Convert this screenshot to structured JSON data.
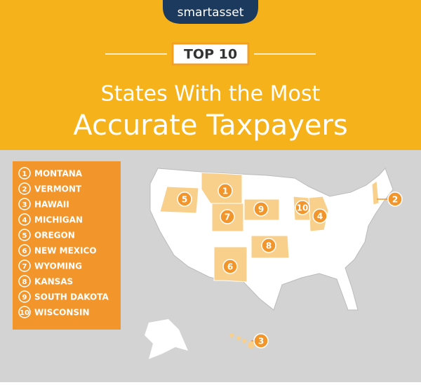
{
  "logo": "smartasset",
  "badge": "TOP 10",
  "title": {
    "line1": "States With the Most",
    "line2": "Accurate Taxpayers"
  },
  "list": [
    {
      "rank": "1",
      "state": "MONTANA"
    },
    {
      "rank": "2",
      "state": "VERMONT"
    },
    {
      "rank": "3",
      "state": "HAWAII"
    },
    {
      "rank": "4",
      "state": "MICHIGAN"
    },
    {
      "rank": "5",
      "state": "OREGON"
    },
    {
      "rank": "6",
      "state": "NEW MEXICO"
    },
    {
      "rank": "7",
      "state": "WYOMING"
    },
    {
      "rank": "8",
      "state": "KANSAS"
    },
    {
      "rank": "9",
      "state": "SOUTH DAKOTA"
    },
    {
      "rank": "10",
      "state": "WISCONSIN"
    }
  ],
  "map_markers": [
    {
      "label": "1"
    },
    {
      "label": "2"
    },
    {
      "label": "3"
    },
    {
      "label": "4"
    },
    {
      "label": "5"
    },
    {
      "label": "6"
    },
    {
      "label": "7"
    },
    {
      "label": "8"
    },
    {
      "label": "9"
    },
    {
      "label": "10"
    }
  ]
}
